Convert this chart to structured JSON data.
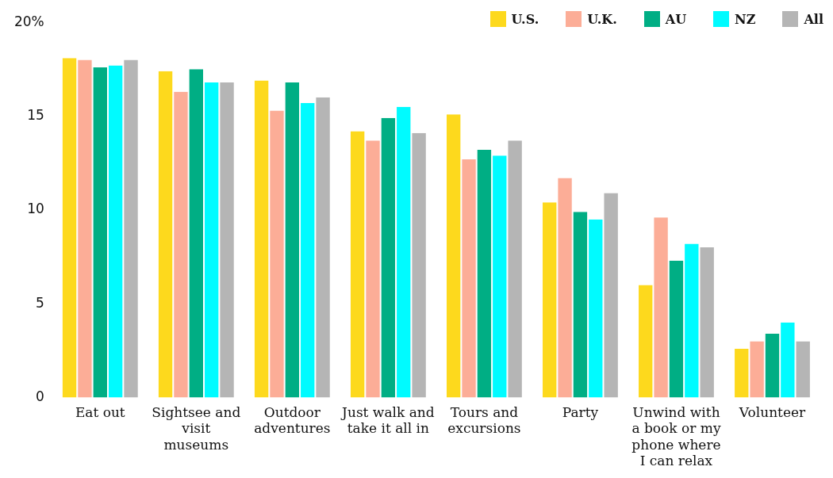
{
  "chart_data": {
    "type": "bar",
    "categories": [
      "Eat out",
      "Sightsee and visit museums",
      "Outdoor adventures",
      "Just walk and take it all in",
      "Tours and excursions",
      "Party",
      "Unwind with a book or my phone where I can relax",
      "Volunteer"
    ],
    "series": [
      {
        "name": "U.S.",
        "color": "#fdd91d",
        "values": [
          18.1,
          17.4,
          16.9,
          14.2,
          15.1,
          10.4,
          6.0,
          2.6
        ]
      },
      {
        "name": "U.K.",
        "color": "#fcad97",
        "values": [
          18.0,
          16.3,
          15.3,
          13.7,
          12.7,
          11.7,
          9.6,
          3.0
        ]
      },
      {
        "name": "AU",
        "color": "#00ae84",
        "values": [
          17.6,
          17.5,
          16.8,
          14.9,
          13.2,
          9.9,
          7.3,
          3.4
        ]
      },
      {
        "name": "NZ",
        "color": "#00fbff",
        "values": [
          17.7,
          16.8,
          15.7,
          15.5,
          12.9,
          9.5,
          8.2,
          4.0
        ]
      },
      {
        "name": "All",
        "color": "#b5b5b5",
        "values": [
          18.0,
          16.8,
          16.0,
          14.1,
          13.7,
          10.9,
          8.0,
          3.0
        ]
      }
    ],
    "ylim": [
      0,
      20
    ],
    "yticks": [
      0,
      5,
      10,
      15,
      {
        "value": 20,
        "label": "20%"
      }
    ],
    "grid": false,
    "legend": "top right"
  }
}
